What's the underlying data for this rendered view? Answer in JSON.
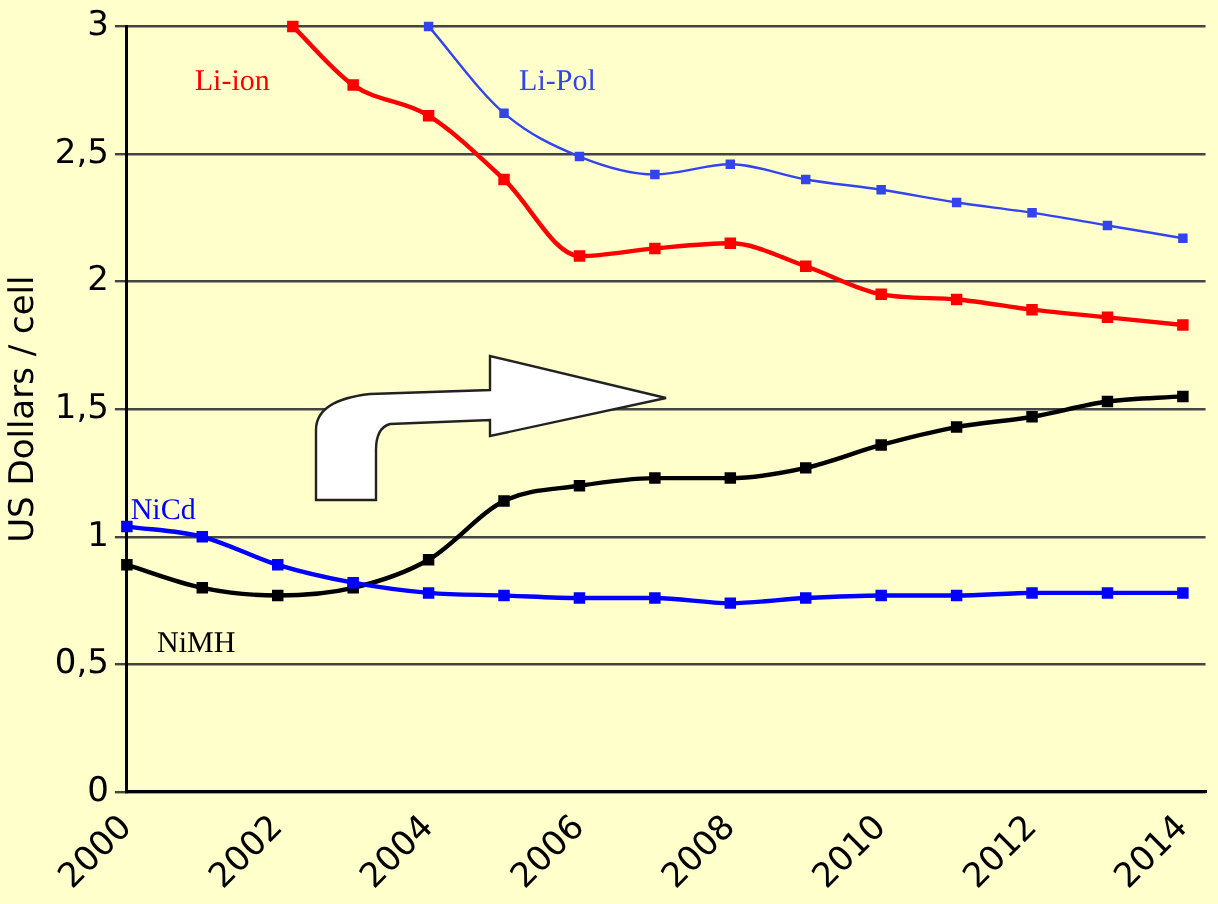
{
  "chart_data": {
    "type": "line",
    "ylabel": "US Dollars / cell",
    "xlim": [
      2000,
      2014.3
    ],
    "xticks": [
      2000,
      2002,
      2004,
      2006,
      2008,
      2010,
      2012,
      2014
    ],
    "ylim": [
      0,
      3
    ],
    "yticks": [
      0,
      {
        "value": 0.5,
        "label": "0,5"
      },
      1,
      {
        "value": 1.5,
        "label": "1,5"
      },
      2,
      {
        "value": 2.5,
        "label": "2,5"
      },
      3
    ],
    "grid": "y",
    "legend": false,
    "marker": "square",
    "series": [
      {
        "name": "Li-ion",
        "color": "#ff0000",
        "x": [
          2002.2,
          2003,
          2004,
          2005,
          2006,
          2007,
          2008,
          2009,
          2010,
          2011,
          2012,
          2013,
          2014
        ],
        "values": [
          3,
          2.77,
          2.65,
          2.4,
          2.1,
          2.13,
          2.15,
          2.06,
          1.95,
          1.93,
          1.89,
          1.86,
          1.83
        ]
      },
      {
        "name": "Li-Pol",
        "color": "#3344ee",
        "x": [
          2004,
          2005,
          2006,
          2007,
          2008,
          2009,
          2010,
          2011,
          2012,
          2013,
          2014
        ],
        "values": [
          3,
          2.66,
          2.49,
          2.42,
          2.46,
          2.4,
          2.36,
          2.31,
          2.27,
          2.22,
          2.17
        ]
      },
      {
        "name": "NiCd",
        "color": "#0000ff",
        "x": [
          2000,
          2001,
          2002,
          2003,
          2004,
          2005,
          2006,
          2007,
          2008,
          2009,
          2010,
          2011,
          2012,
          2013,
          2014
        ],
        "values": [
          1.04,
          1.0,
          0.89,
          0.82,
          0.78,
          0.77,
          0.76,
          0.76,
          0.74,
          0.76,
          0.77,
          0.77,
          0.78,
          0.78,
          0.78
        ]
      },
      {
        "name": "NiMH",
        "color": "#000000",
        "x": [
          2000,
          2001,
          2002,
          2003,
          2004,
          2005,
          2006,
          2007,
          2008,
          2009,
          2010,
          2011,
          2012,
          2013,
          2014
        ],
        "values": [
          0.89,
          0.8,
          0.77,
          0.8,
          0.91,
          1.14,
          1.2,
          1.23,
          1.23,
          1.27,
          1.36,
          1.43,
          1.47,
          1.53,
          1.55
        ]
      }
    ]
  }
}
